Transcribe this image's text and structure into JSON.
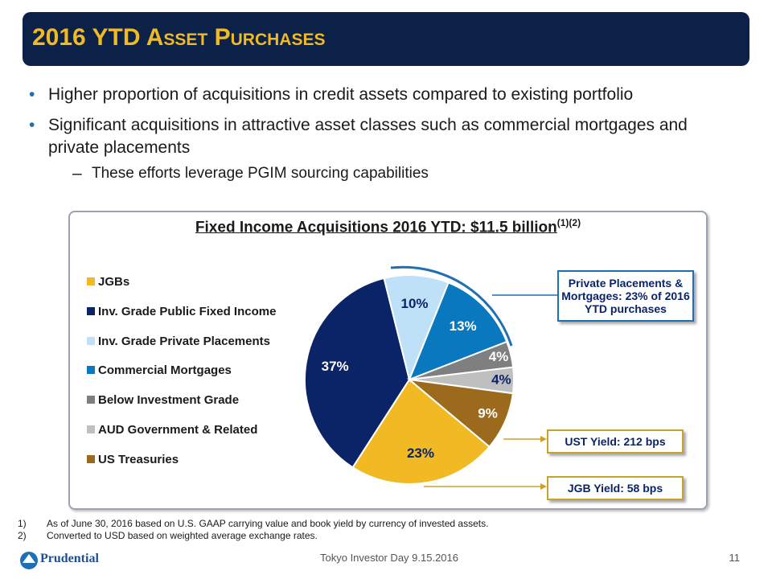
{
  "header": {
    "title": "2016 YTD Asset Purchases"
  },
  "bullets": [
    {
      "text": "Higher proportion of acquisitions in credit assets compared to existing portfolio"
    },
    {
      "text": "Significant acquisitions in attractive asset classes such as commercial mortgages and private placements"
    },
    {
      "text": "These efforts leverage PGIM sourcing capabilities",
      "sub": true
    }
  ],
  "chart_data": {
    "type": "pie",
    "title": "Fixed Income Acquisitions 2016 YTD: $11.5 billion",
    "title_note": "(1)(2)",
    "categories": [
      "JGBs",
      "Inv. Grade Public Fixed Income",
      "Inv. Grade Private Placements",
      "Commercial Mortgages",
      "Below Investment Grade",
      "AUD Government & Related",
      "US Treasuries"
    ],
    "values": [
      23,
      37,
      10,
      13,
      4,
      4,
      9
    ],
    "value_labels": [
      "23%",
      "37%",
      "10%",
      "13%",
      "4%",
      "4%",
      "9%"
    ],
    "colors": [
      "#f1b924",
      "#0b2467",
      "#bfe1f7",
      "#0a78bf",
      "#7f7f7f",
      "#bfbfbf",
      "#9b6a1c"
    ],
    "legend": "left",
    "annotations": [
      {
        "text": "Private Placements & Mortgages: 23% of 2016 YTD purchases"
      },
      {
        "text": "UST Yield: 212 bps"
      },
      {
        "text": "JGB Yield: 58 bps"
      }
    ]
  },
  "footnotes": [
    {
      "num": "1)",
      "text": "As of June 30, 2016 based on U.S. GAAP carrying value and book yield by currency of invested assets."
    },
    {
      "num": "2)",
      "text": "Converted to USD based on weighted average exchange rates."
    }
  ],
  "footer": {
    "logo": "Prudential",
    "event": "Tokyo Investor Day 9.15.2016",
    "page": "11"
  }
}
